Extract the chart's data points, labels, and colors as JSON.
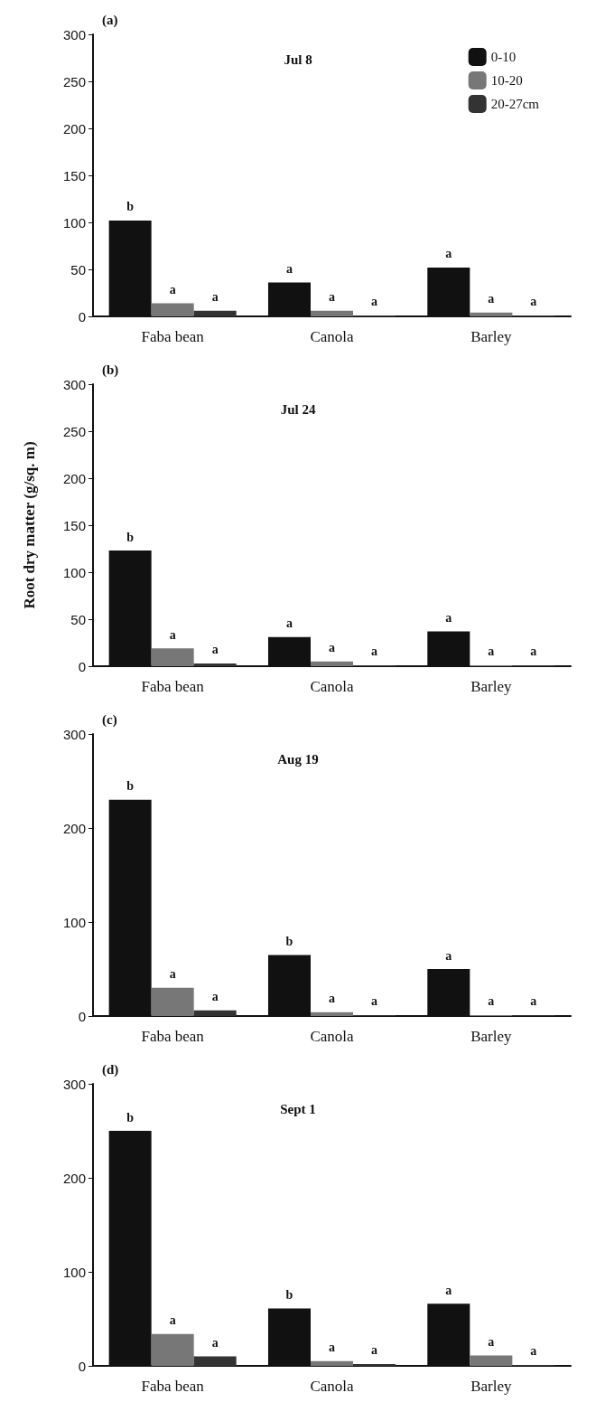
{
  "chart_data": [
    {
      "type": "bar",
      "title": "Jul 8",
      "annotations": [
        "(a)"
      ],
      "categories": [
        "Faba bean",
        "Canola",
        "Barley"
      ],
      "legend": "top right",
      "ylim": [
        0,
        300
      ],
      "yticks": [
        0,
        50,
        100,
        150,
        200,
        250,
        300
      ],
      "grid": false,
      "series": [
        {
          "name": "0-10",
          "color": "#111111",
          "values": [
            102,
            36,
            52
          ],
          "value_labels": [
            "b",
            "a",
            "a"
          ]
        },
        {
          "name": "10-20",
          "color": "#777777",
          "values": [
            14,
            6,
            4
          ],
          "value_labels": [
            "a",
            "a",
            "a"
          ]
        },
        {
          "name": "20-27cm",
          "color": "#333333",
          "values": [
            6,
            1,
            1
          ],
          "value_labels": [
            "a",
            "a",
            "a"
          ]
        }
      ]
    },
    {
      "type": "bar",
      "title": "Jul 24",
      "annotations": [
        "(b)"
      ],
      "ylabel": "Root dry matter (g/sq. m)",
      "categories": [
        "Faba bean",
        "Canola",
        "Barley"
      ],
      "ylim": [
        0,
        300
      ],
      "yticks": [
        0,
        50,
        100,
        150,
        200,
        250,
        300
      ],
      "grid": false,
      "series": [
        {
          "color": "#111111",
          "values": [
            123,
            31,
            37
          ],
          "value_labels": [
            "b",
            "a",
            "a"
          ]
        },
        {
          "color": "#777777",
          "values": [
            19,
            5,
            1
          ],
          "value_labels": [
            "a",
            "a",
            "a"
          ]
        },
        {
          "color": "#333333",
          "values": [
            3,
            1,
            1
          ],
          "value_labels": [
            "a",
            "a",
            "a"
          ]
        }
      ]
    },
    {
      "type": "bar",
      "title": "Aug 19",
      "annotations": [
        "(c)"
      ],
      "categories": [
        "Faba bean",
        "Canola",
        "Barley"
      ],
      "ylim": [
        0,
        300
      ],
      "yticks": [
        0,
        100,
        200,
        300
      ],
      "grid": false,
      "series": [
        {
          "color": "#111111",
          "values": [
            230,
            65,
            50
          ],
          "value_labels": [
            "b",
            "b",
            "a"
          ]
        },
        {
          "color": "#777777",
          "values": [
            30,
            4,
            1
          ],
          "value_labels": [
            "a",
            "a",
            "a"
          ]
        },
        {
          "color": "#333333",
          "values": [
            6,
            1,
            1
          ],
          "value_labels": [
            "a",
            "a",
            "a"
          ]
        }
      ]
    },
    {
      "type": "bar",
      "title": "Sept 1",
      "annotations": [
        "(d)"
      ],
      "categories": [
        "Faba bean",
        "Canola",
        "Barley"
      ],
      "ylim": [
        0,
        300
      ],
      "yticks": [
        0,
        100,
        200,
        300
      ],
      "grid": false,
      "series": [
        {
          "color": "#111111",
          "values": [
            250,
            61,
            66
          ],
          "value_labels": [
            "b",
            "b",
            "a"
          ]
        },
        {
          "color": "#777777",
          "values": [
            34,
            5,
            11
          ],
          "value_labels": [
            "a",
            "a",
            "a"
          ]
        },
        {
          "color": "#333333",
          "values": [
            10,
            2,
            1
          ],
          "value_labels": [
            "a",
            "a",
            "a"
          ]
        }
      ]
    }
  ]
}
